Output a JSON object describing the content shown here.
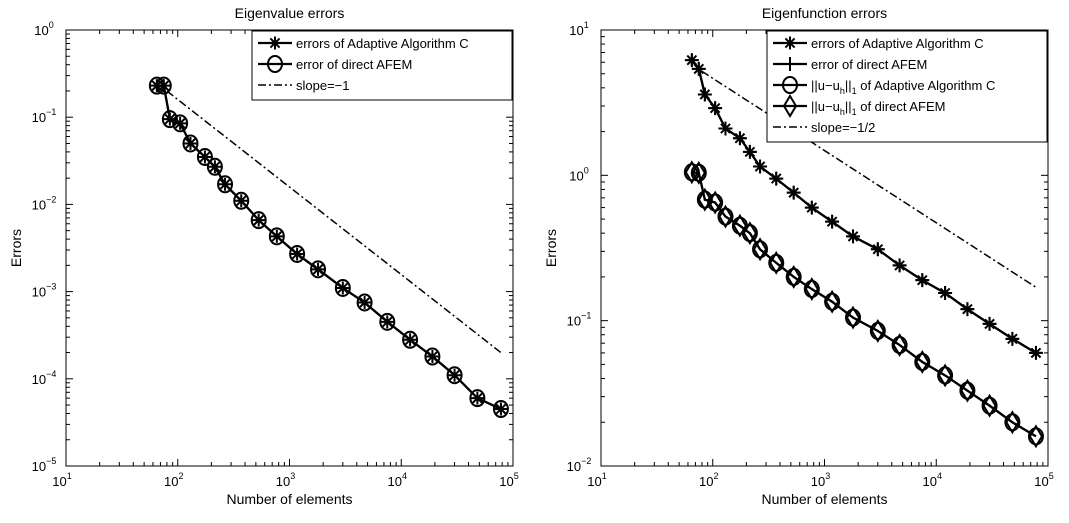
{
  "chart_data": [
    {
      "type": "line",
      "title": "Eigenvalue errors",
      "xlabel": "Number of elements",
      "ylabel": "Errors",
      "xscale": "log",
      "yscale": "log",
      "xlim": [
        10,
        100000
      ],
      "ylim": [
        1e-05,
        1
      ],
      "x_ticks": [
        {
          "value": 10,
          "base": "10",
          "exp": "1"
        },
        {
          "value": 100,
          "base": "10",
          "exp": "2"
        },
        {
          "value": 1000,
          "base": "10",
          "exp": "3"
        },
        {
          "value": 10000,
          "base": "10",
          "exp": "4"
        },
        {
          "value": 100000,
          "base": "10",
          "exp": "5"
        }
      ],
      "y_ticks": [
        {
          "value": 1e-05,
          "base": "10",
          "exp": "−5"
        },
        {
          "value": 0.0001,
          "base": "10",
          "exp": "−4"
        },
        {
          "value": 0.001,
          "base": "10",
          "exp": "−3"
        },
        {
          "value": 0.01,
          "base": "10",
          "exp": "−2"
        },
        {
          "value": 0.1,
          "base": "10",
          "exp": "−1"
        },
        {
          "value": 1,
          "base": "10",
          "exp": "0"
        }
      ],
      "grid": false,
      "legend_position": "top-right",
      "series": [
        {
          "name": "errors of Adaptive Algorithm C",
          "marker": "asterisk",
          "style": "solid",
          "x": [
            65,
            75,
            85,
            105,
            130,
            175,
            215,
            265,
            370,
            530,
            770,
            1170,
            1800,
            3000,
            4700,
            7500,
            12000,
            19000,
            30000,
            48000,
            78000
          ],
          "y": [
            0.23,
            0.23,
            0.095,
            0.085,
            0.05,
            0.035,
            0.027,
            0.017,
            0.011,
            0.0066,
            0.0043,
            0.0027,
            0.0018,
            0.0011,
            0.00075,
            0.00045,
            0.00028,
            0.00018,
            0.00011,
            6e-05,
            4.5e-05
          ]
        },
        {
          "name": "error of direct AFEM",
          "marker": "circle",
          "style": "solid",
          "x": [
            65,
            75,
            85,
            105,
            130,
            175,
            215,
            265,
            370,
            530,
            770,
            1170,
            1800,
            3000,
            4700,
            7500,
            12000,
            19000,
            30000,
            48000,
            78000
          ],
          "y": [
            0.23,
            0.23,
            0.095,
            0.085,
            0.05,
            0.035,
            0.027,
            0.017,
            0.011,
            0.0066,
            0.0043,
            0.0027,
            0.0018,
            0.0011,
            0.00075,
            0.00045,
            0.00028,
            0.00018,
            0.00011,
            6e-05,
            4.5e-05
          ]
        },
        {
          "name": "slope=−1",
          "marker": "none",
          "style": "dashdot",
          "x": [
            80,
            78000
          ],
          "y": [
            0.2,
            0.0002
          ]
        }
      ]
    },
    {
      "type": "line",
      "title": "Eigenfunction errors",
      "xlabel": "Number of elements",
      "ylabel": "Errors",
      "xscale": "log",
      "yscale": "log",
      "xlim": [
        10,
        100000
      ],
      "ylim": [
        0.01,
        10
      ],
      "x_ticks": [
        {
          "value": 10,
          "base": "10",
          "exp": "1"
        },
        {
          "value": 100,
          "base": "10",
          "exp": "2"
        },
        {
          "value": 1000,
          "base": "10",
          "exp": "3"
        },
        {
          "value": 10000,
          "base": "10",
          "exp": "4"
        },
        {
          "value": 100000,
          "base": "10",
          "exp": "5"
        }
      ],
      "y_ticks": [
        {
          "value": 0.01,
          "base": "10",
          "exp": "−2"
        },
        {
          "value": 0.1,
          "base": "10",
          "exp": "−1"
        },
        {
          "value": 1,
          "base": "10",
          "exp": "0"
        },
        {
          "value": 10,
          "base": "10",
          "exp": "1"
        }
      ],
      "grid": false,
      "legend_position": "top-right",
      "series": [
        {
          "name": "errors of Adaptive Algorithm C",
          "marker": "asterisk",
          "style": "solid",
          "x": [
            65,
            75,
            85,
            105,
            130,
            175,
            215,
            265,
            370,
            530,
            770,
            1170,
            1800,
            3000,
            4700,
            7500,
            12000,
            19000,
            30000,
            48000,
            78000
          ],
          "y": [
            6.2,
            5.4,
            3.6,
            2.9,
            2.1,
            1.8,
            1.45,
            1.15,
            0.95,
            0.76,
            0.6,
            0.48,
            0.38,
            0.31,
            0.24,
            0.19,
            0.155,
            0.12,
            0.095,
            0.075,
            0.06
          ]
        },
        {
          "name": "error of direct AFEM",
          "marker": "plus",
          "style": "solid",
          "x": [
            65,
            75,
            85,
            105,
            130,
            175,
            215,
            265,
            370,
            530,
            770,
            1170,
            1800,
            3000,
            4700,
            7500,
            12000,
            19000,
            30000,
            48000,
            78000
          ],
          "y": [
            6.2,
            5.4,
            3.6,
            2.9,
            2.1,
            1.8,
            1.45,
            1.15,
            0.95,
            0.76,
            0.6,
            0.48,
            0.38,
            0.31,
            0.24,
            0.19,
            0.155,
            0.12,
            0.095,
            0.075,
            0.06
          ]
        },
        {
          "name": "||u−u_h||_1 of Adaptive Algorithm C",
          "legend_parts": [
            "||u−u",
            "h",
            "||",
            "1",
            " of Adaptive Algorithm C"
          ],
          "marker": "circle",
          "style": "solid",
          "x": [
            65,
            75,
            85,
            105,
            130,
            175,
            215,
            265,
            370,
            530,
            770,
            1170,
            1800,
            3000,
            4700,
            7500,
            12000,
            19000,
            30000,
            48000,
            78000
          ],
          "y": [
            1.05,
            1.04,
            0.68,
            0.65,
            0.52,
            0.45,
            0.4,
            0.31,
            0.25,
            0.2,
            0.165,
            0.135,
            0.105,
            0.085,
            0.068,
            0.052,
            0.042,
            0.033,
            0.026,
            0.02,
            0.016
          ]
        },
        {
          "name": "||u−u_h||_1 of direct AFEM",
          "legend_parts": [
            "||u−u",
            "h",
            "||",
            "1",
            " of direct AFEM"
          ],
          "marker": "diamond",
          "style": "solid",
          "x": [
            65,
            75,
            85,
            105,
            130,
            175,
            215,
            265,
            370,
            530,
            770,
            1170,
            1800,
            3000,
            4700,
            7500,
            12000,
            19000,
            30000,
            48000,
            78000
          ],
          "y": [
            1.05,
            1.04,
            0.68,
            0.65,
            0.52,
            0.45,
            0.4,
            0.31,
            0.25,
            0.2,
            0.165,
            0.135,
            0.105,
            0.085,
            0.068,
            0.052,
            0.042,
            0.033,
            0.026,
            0.02,
            0.016
          ]
        },
        {
          "name": "slope=−1/2",
          "marker": "none",
          "style": "dashdot",
          "x": [
            80,
            78000
          ],
          "y": [
            5.2,
            0.17
          ]
        }
      ]
    }
  ]
}
